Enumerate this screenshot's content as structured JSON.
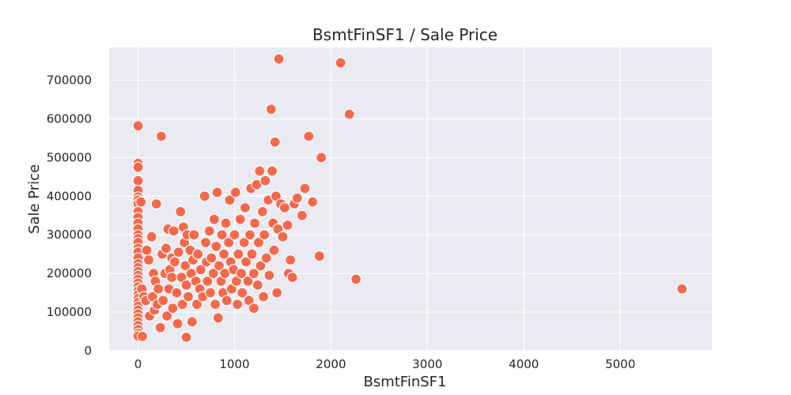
{
  "chart_data": {
    "type": "scatter",
    "title": "BsmtFinSF1 / Sale Price",
    "xlabel": "BsmtFinSF1",
    "ylabel": "Sale Price",
    "xlim": [
      -300,
      5950
    ],
    "ylim": [
      0,
      785000
    ],
    "xticks": [
      0,
      1000,
      2000,
      3000,
      4000,
      5000
    ],
    "yticks": [
      0,
      100000,
      200000,
      300000,
      400000,
      500000,
      600000,
      700000
    ],
    "grid": true,
    "colors": {
      "point": "#f4694b",
      "plot_bg": "#eaeaf2",
      "grid": "#ffffff"
    },
    "points": [
      [
        0,
        582000
      ],
      [
        0,
        485000
      ],
      [
        0,
        475000
      ],
      [
        0,
        440000
      ],
      [
        0,
        415000
      ],
      [
        0,
        398000
      ],
      [
        0,
        390000
      ],
      [
        0,
        380000
      ],
      [
        0,
        360000
      ],
      [
        0,
        345000
      ],
      [
        0,
        330000
      ],
      [
        0,
        315000
      ],
      [
        0,
        300000
      ],
      [
        0,
        290000
      ],
      [
        0,
        280000
      ],
      [
        0,
        265000
      ],
      [
        0,
        255000
      ],
      [
        0,
        240000
      ],
      [
        0,
        225000
      ],
      [
        0,
        215000
      ],
      [
        0,
        205000
      ],
      [
        0,
        195000
      ],
      [
        0,
        185000
      ],
      [
        0,
        175000
      ],
      [
        0,
        165000
      ],
      [
        0,
        155000
      ],
      [
        0,
        145000
      ],
      [
        0,
        135000
      ],
      [
        0,
        125000
      ],
      [
        0,
        115000
      ],
      [
        0,
        105000
      ],
      [
        0,
        95000
      ],
      [
        0,
        85000
      ],
      [
        0,
        75000
      ],
      [
        0,
        65000
      ],
      [
        0,
        55000
      ],
      [
        0,
        45000
      ],
      [
        0,
        38000
      ],
      [
        30,
        385000
      ],
      [
        40,
        160000
      ],
      [
        45,
        37000
      ],
      [
        60,
        140000
      ],
      [
        80,
        130000
      ],
      [
        90,
        260000
      ],
      [
        110,
        235000
      ],
      [
        120,
        90000
      ],
      [
        140,
        295000
      ],
      [
        150,
        140000
      ],
      [
        160,
        200000
      ],
      [
        170,
        105000
      ],
      [
        180,
        180000
      ],
      [
        190,
        380000
      ],
      [
        200,
        120000
      ],
      [
        210,
        160000
      ],
      [
        230,
        60000
      ],
      [
        240,
        555000
      ],
      [
        250,
        250000
      ],
      [
        260,
        130000
      ],
      [
        280,
        200000
      ],
      [
        290,
        265000
      ],
      [
        300,
        90000
      ],
      [
        310,
        315000
      ],
      [
        320,
        160000
      ],
      [
        330,
        210000
      ],
      [
        350,
        240000
      ],
      [
        350,
        190000
      ],
      [
        360,
        110000
      ],
      [
        370,
        310000
      ],
      [
        380,
        230000
      ],
      [
        400,
        150000
      ],
      [
        410,
        70000
      ],
      [
        420,
        255000
      ],
      [
        440,
        360000
      ],
      [
        450,
        190000
      ],
      [
        460,
        120000
      ],
      [
        470,
        320000
      ],
      [
        480,
        280000
      ],
      [
        490,
        220000
      ],
      [
        500,
        170000
      ],
      [
        500,
        35000
      ],
      [
        510,
        300000
      ],
      [
        520,
        140000
      ],
      [
        540,
        260000
      ],
      [
        550,
        200000
      ],
      [
        560,
        75000
      ],
      [
        570,
        235000
      ],
      [
        580,
        300000
      ],
      [
        600,
        180000
      ],
      [
        610,
        120000
      ],
      [
        620,
        250000
      ],
      [
        640,
        160000
      ],
      [
        650,
        210000
      ],
      [
        670,
        140000
      ],
      [
        690,
        400000
      ],
      [
        700,
        280000
      ],
      [
        710,
        230000
      ],
      [
        720,
        180000
      ],
      [
        740,
        310000
      ],
      [
        750,
        150000
      ],
      [
        760,
        240000
      ],
      [
        780,
        200000
      ],
      [
        790,
        340000
      ],
      [
        800,
        120000
      ],
      [
        810,
        270000
      ],
      [
        820,
        410000
      ],
      [
        830,
        85000
      ],
      [
        840,
        220000
      ],
      [
        860,
        180000
      ],
      [
        870,
        300000
      ],
      [
        880,
        150000
      ],
      [
        890,
        250000
      ],
      [
        900,
        200000
      ],
      [
        910,
        330000
      ],
      [
        920,
        130000
      ],
      [
        940,
        280000
      ],
      [
        950,
        390000
      ],
      [
        960,
        230000
      ],
      [
        970,
        160000
      ],
      [
        990,
        210000
      ],
      [
        1000,
        300000
      ],
      [
        1010,
        410000
      ],
      [
        1020,
        180000
      ],
      [
        1030,
        120000
      ],
      [
        1040,
        250000
      ],
      [
        1060,
        340000
      ],
      [
        1070,
        200000
      ],
      [
        1080,
        150000
      ],
      [
        1100,
        280000
      ],
      [
        1110,
        370000
      ],
      [
        1120,
        230000
      ],
      [
        1140,
        180000
      ],
      [
        1150,
        130000
      ],
      [
        1160,
        300000
      ],
      [
        1170,
        420000
      ],
      [
        1180,
        250000
      ],
      [
        1200,
        110000
      ],
      [
        1200,
        200000
      ],
      [
        1210,
        330000
      ],
      [
        1230,
        430000
      ],
      [
        1240,
        170000
      ],
      [
        1250,
        280000
      ],
      [
        1260,
        465000
      ],
      [
        1270,
        220000
      ],
      [
        1290,
        360000
      ],
      [
        1300,
        140000
      ],
      [
        1310,
        300000
      ],
      [
        1320,
        440000
      ],
      [
        1330,
        240000
      ],
      [
        1350,
        390000
      ],
      [
        1360,
        195000
      ],
      [
        1380,
        625000
      ],
      [
        1390,
        465000
      ],
      [
        1400,
        330000
      ],
      [
        1410,
        260000
      ],
      [
        1420,
        540000
      ],
      [
        1430,
        400000
      ],
      [
        1440,
        150000
      ],
      [
        1450,
        315000
      ],
      [
        1460,
        755000
      ],
      [
        1480,
        380000
      ],
      [
        1500,
        295000
      ],
      [
        1520,
        370000
      ],
      [
        1550,
        325000
      ],
      [
        1560,
        200000
      ],
      [
        1580,
        235000
      ],
      [
        1600,
        190000
      ],
      [
        1620,
        380000
      ],
      [
        1650,
        395000
      ],
      [
        1700,
        350000
      ],
      [
        1730,
        420000
      ],
      [
        1770,
        555000
      ],
      [
        1810,
        385000
      ],
      [
        1880,
        245000
      ],
      [
        1900,
        500000
      ],
      [
        2100,
        745000
      ],
      [
        2190,
        612000
      ],
      [
        2260,
        185000
      ],
      [
        5640,
        160000
      ]
    ]
  }
}
